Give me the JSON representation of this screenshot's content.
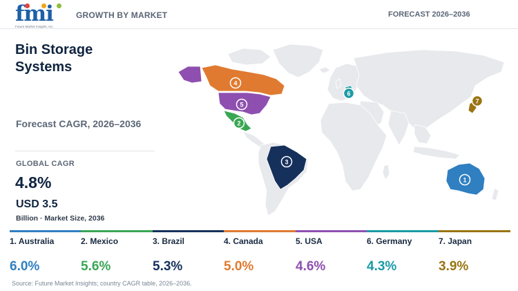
{
  "header": {
    "logo_text": "fmi",
    "logo_subtext": "Future Market Insights, Inc.",
    "left_label": "GROWTH BY MARKET",
    "right_label": "FORECAST 2026–2036"
  },
  "panel": {
    "title": "Bin Storage Systems",
    "subtitle": "Forecast CAGR, 2026–2036",
    "global_cagr_label": "GLOBAL CAGR",
    "global_cagr_value": "4.8%",
    "market_size_value": "USD 3.5",
    "market_size_label": "Billion · Market Size, 2036"
  },
  "markets": [
    {
      "rank": "1",
      "name": "1. Australia",
      "cagr": "6.0%",
      "color": "#2f7fc1"
    },
    {
      "rank": "2",
      "name": "2. Mexico",
      "cagr": "5.6%",
      "color": "#3aa654"
    },
    {
      "rank": "3",
      "name": "3. Brazil",
      "cagr": "5.3%",
      "color": "#16305c"
    },
    {
      "rank": "4",
      "name": "4. Canada",
      "cagr": "5.0%",
      "color": "#e07a30"
    },
    {
      "rank": "5",
      "name": "5. USA",
      "cagr": "4.6%",
      "color": "#8e4fb0"
    },
    {
      "rank": "6",
      "name": "6. Germany",
      "cagr": "4.3%",
      "color": "#1a9aa5"
    },
    {
      "rank": "7",
      "name": "7. Japan",
      "cagr": "3.9%",
      "color": "#9a7412"
    }
  ],
  "colors": {
    "land": "#e7e9ec",
    "border": "#ffffff",
    "title": "#0f2440"
  },
  "source": "Source: Future Market Insights; country CAGR table, 2026–2036."
}
